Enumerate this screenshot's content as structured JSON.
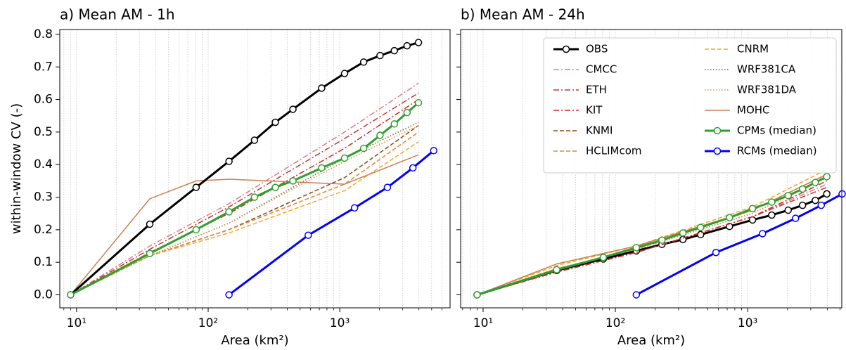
{
  "chart_data": [
    {
      "type": "line",
      "title": "a) Mean AM - 1h",
      "ylabel": "within-window CV (-)",
      "xlabel": "Area (km²)",
      "xscale": "log",
      "grid": "x",
      "xlim": [
        7.45,
        6900
      ],
      "xticks": [
        {
          "value": 10,
          "label": "10¹"
        },
        {
          "value": 100,
          "label": "10²"
        },
        {
          "value": 1000,
          "label": "10³"
        }
      ],
      "ylim": [
        -0.04,
        0.815
      ],
      "yticks": [
        {
          "value": 0,
          "label": "0.0"
        },
        0.1,
        0.2,
        0.3,
        0.4,
        0.5,
        0.6,
        0.7,
        0.8
      ],
      "x": [
        9,
        36,
        81,
        144,
        225,
        324,
        441,
        729,
        1089,
        1521,
        2025,
        2601,
        3249,
        3969
      ],
      "series": [
        {
          "color": "#e07a80",
          "dash": "dashdot",
          "width": 1.5,
          "x": [
            9,
            36,
            144,
            1089,
            3969
          ],
          "values": [
            0,
            0.15,
            0.28,
            0.5,
            0.65
          ]
        },
        {
          "color": "#c03838",
          "dash": "dashdot",
          "width": 1.5,
          "x": [
            9,
            36,
            144,
            1089,
            3969
          ],
          "values": [
            0,
            0.14,
            0.27,
            0.48,
            0.62
          ]
        },
        {
          "color": "#d62728",
          "dash": "dashdot",
          "width": 1.5,
          "x": [
            9,
            36,
            144,
            1089,
            3969
          ],
          "values": [
            0,
            0.13,
            0.25,
            0.45,
            0.6
          ]
        },
        {
          "color": "#8b4513",
          "dash": "dashed",
          "width": 1.5,
          "x": [
            9,
            36,
            144,
            1089,
            3969
          ],
          "values": [
            0,
            0.12,
            0.2,
            0.36,
            0.52
          ]
        },
        {
          "color": "#e8833a",
          "dash": "dashed",
          "width": 1.5,
          "x": [
            9,
            36,
            144,
            1089,
            3969
          ],
          "values": [
            0,
            0.12,
            0.2,
            0.34,
            0.5
          ]
        },
        {
          "color": "#f5a623",
          "dash": "dashed",
          "width": 1.5,
          "x": [
            9,
            36,
            144,
            1089,
            3969
          ],
          "values": [
            0,
            0.12,
            0.19,
            0.32,
            0.47
          ]
        },
        {
          "color": "#8b5a2b",
          "dash": "dotted",
          "width": 1.5,
          "x": [
            9,
            36,
            144,
            1089,
            3969
          ],
          "values": [
            0,
            0.12,
            0.22,
            0.42,
            0.53
          ]
        },
        {
          "color": "#d2914a",
          "dash": "dotted",
          "width": 1.5,
          "x": [
            9,
            36,
            144,
            1089,
            3969
          ],
          "values": [
            0,
            0.12,
            0.22,
            0.41,
            0.52
          ]
        },
        {
          "color": "#cd7f50",
          "dash": "solid",
          "width": 1.5,
          "x": [
            9,
            36,
            81,
            144,
            1089,
            3969
          ],
          "values": [
            0,
            0.295,
            0.35,
            0.355,
            0.34,
            0.43
          ]
        },
        {
          "color": "#000000",
          "dash": "solid",
          "width": 3,
          "marker": true,
          "values": [
            0,
            0.217,
            0.33,
            0.41,
            0.475,
            0.53,
            0.57,
            0.635,
            0.68,
            0.715,
            0.735,
            0.75,
            0.765,
            0.775
          ]
        },
        {
          "color": "#2ca02c",
          "dash": "solid",
          "width": 3,
          "marker": true,
          "values": [
            0,
            0.127,
            0.2,
            0.255,
            0.3,
            0.33,
            0.35,
            0.39,
            0.42,
            0.45,
            0.49,
            0.525,
            0.56,
            0.59
          ]
        },
        {
          "color": "#0000ff",
          "dash": "solid",
          "width": 3,
          "marker": true,
          "x": [
            144,
            576,
            1296,
            2304,
            3600,
            5184
          ],
          "values": [
            0,
            0.183,
            0.267,
            0.33,
            0.39,
            0.443
          ]
        }
      ]
    },
    {
      "type": "line",
      "title": "b) Mean AM - 24h",
      "xlabel": "Area (km²)",
      "xscale": "log",
      "grid": "x",
      "sharey": true,
      "legend": "upper right",
      "xlim": [
        6.76,
        5150
      ],
      "xticks": [
        {
          "value": 10,
          "label": "10¹"
        },
        {
          "value": 100,
          "label": "10²"
        },
        {
          "value": 1000,
          "label": "10³"
        }
      ],
      "x": [
        9,
        36,
        81,
        144,
        225,
        324,
        441,
        729,
        1089,
        1521,
        2025,
        2601,
        3249,
        3969
      ],
      "series": [
        {
          "name": "OBS",
          "color": "#000000",
          "dash": "solid",
          "width": 3,
          "marker": true,
          "values": [
            0,
            0.075,
            0.11,
            0.135,
            0.155,
            0.17,
            0.185,
            0.21,
            0.23,
            0.245,
            0.26,
            0.275,
            0.29,
            0.31
          ]
        },
        {
          "name": "CMCC",
          "color": "#e07a80",
          "dash": "dashdot",
          "width": 1.5,
          "x": [
            9,
            36,
            144,
            1089,
            3969
          ],
          "values": [
            0,
            0.07,
            0.13,
            0.24,
            0.34
          ]
        },
        {
          "name": "ETH",
          "color": "#c03838",
          "dash": "dashdot",
          "width": 1.5,
          "x": [
            9,
            36,
            144,
            1089,
            3969
          ],
          "values": [
            0,
            0.07,
            0.13,
            0.24,
            0.33
          ]
        },
        {
          "name": "KIT",
          "color": "#d62728",
          "dash": "dashdot",
          "width": 1.5,
          "x": [
            9,
            36,
            144,
            1089,
            3969
          ],
          "values": [
            0,
            0.07,
            0.13,
            0.24,
            0.35
          ]
        },
        {
          "name": "KNMI",
          "color": "#8b4513",
          "dash": "dashed",
          "width": 1.5,
          "x": [
            9,
            36,
            144,
            1089,
            3969
          ],
          "values": [
            0,
            0.08,
            0.14,
            0.26,
            0.37
          ]
        },
        {
          "name": "HCLIMcom",
          "color": "#e8833a",
          "dash": "dashed",
          "width": 1.5,
          "x": [
            9,
            36,
            144,
            1089,
            3969
          ],
          "values": [
            0,
            0.08,
            0.14,
            0.26,
            0.37
          ]
        },
        {
          "name": "CNRM",
          "color": "#f5a623",
          "dash": "dashed",
          "width": 1.5,
          "x": [
            9,
            36,
            144,
            1089,
            3969
          ],
          "values": [
            0,
            0.09,
            0.15,
            0.27,
            0.385
          ]
        },
        {
          "name": "WRF381CA",
          "color": "#8b5a2b",
          "dash": "dotted",
          "width": 1.5,
          "x": [
            9,
            36,
            144,
            1089,
            3969
          ],
          "values": [
            0,
            0.08,
            0.14,
            0.25,
            0.36
          ]
        },
        {
          "name": "WRF381DA",
          "color": "#d2914a",
          "dash": "dotted",
          "width": 1.5,
          "x": [
            9,
            36,
            144,
            1089,
            3969
          ],
          "values": [
            0,
            0.08,
            0.14,
            0.25,
            0.36
          ]
        },
        {
          "name": "MOHC",
          "color": "#cd7f50",
          "dash": "solid",
          "width": 1.5,
          "x": [
            9,
            36,
            144,
            1089,
            3969
          ],
          "values": [
            0,
            0.095,
            0.15,
            0.26,
            0.37
          ]
        },
        {
          "name": "CPMs (median)",
          "color": "#2ca02c",
          "dash": "solid",
          "width": 3,
          "marker": true,
          "values": [
            0,
            0.077,
            0.115,
            0.145,
            0.168,
            0.19,
            0.207,
            0.237,
            0.265,
            0.285,
            0.305,
            0.325,
            0.345,
            0.363
          ]
        },
        {
          "name": "RCMs (median)",
          "color": "#0000ff",
          "dash": "solid",
          "width": 3,
          "marker": true,
          "x": [
            144,
            576,
            1296,
            2304,
            3600,
            5184
          ],
          "values": [
            0,
            0.13,
            0.188,
            0.235,
            0.275,
            0.31
          ]
        }
      ]
    }
  ]
}
